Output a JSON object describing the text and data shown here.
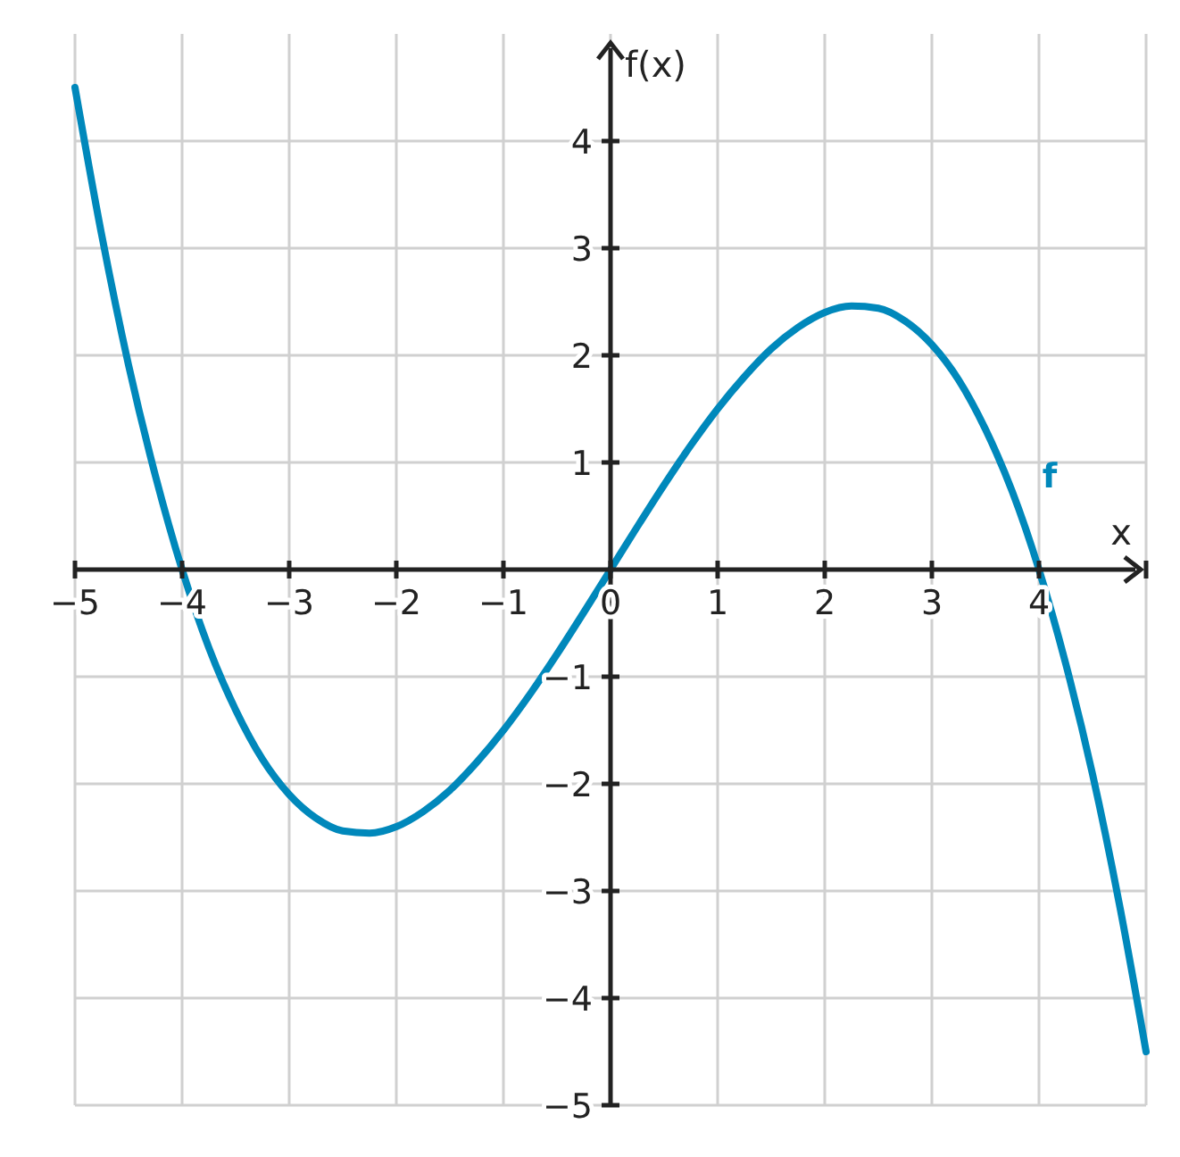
{
  "chart_data": {
    "type": "line",
    "xlabel": "x",
    "ylabel": "f(x)",
    "grid": true,
    "line_style": "solid",
    "marker": "none",
    "xlim": [
      -5,
      5
    ],
    "ylim": [
      -5,
      5
    ],
    "xticks": [
      {
        "value": -5,
        "label": "−5"
      },
      {
        "value": -4,
        "label": "−4"
      },
      {
        "value": -3,
        "label": "−3"
      },
      {
        "value": -2,
        "label": "−2"
      },
      {
        "value": -1,
        "label": "−1"
      },
      {
        "value": 0,
        "label": "0"
      },
      1,
      2,
      3,
      4,
      {
        "value": 5,
        "label": null
      }
    ],
    "yticks": [
      {
        "value": -5,
        "label": "−5"
      },
      {
        "value": -4,
        "label": "−4"
      },
      {
        "value": -3,
        "label": "−3"
      },
      {
        "value": -2,
        "label": "−2"
      },
      {
        "value": -1,
        "label": "−1"
      },
      1,
      2,
      3,
      4
    ],
    "series": [
      {
        "name": "f",
        "color": "#0088bb",
        "x": [
          -5,
          -4.75,
          -4.5,
          -4.25,
          -4,
          -3.75,
          -3.5,
          -3.25,
          -3,
          -2.75,
          -2.5,
          -2.25,
          -2,
          -1.75,
          -1.5,
          -1.25,
          -1,
          -0.75,
          -0.5,
          -0.25,
          0,
          0.25,
          0.5,
          0.75,
          1,
          1.25,
          1.5,
          1.75,
          2,
          2.25,
          2.5,
          2.75,
          3,
          3.25,
          3.5,
          3.75,
          4,
          4.25,
          4.5,
          4.75,
          5
        ],
        "values": [
          4.5,
          3.12,
          1.91,
          0.88,
          0,
          -0.73,
          -1.31,
          -1.77,
          -2.1,
          -2.32,
          -2.44,
          -2.46,
          -2.4,
          -2.26,
          -2.06,
          -1.8,
          -1.5,
          -1.16,
          -0.79,
          -0.4,
          0,
          0.4,
          0.79,
          1.16,
          1.5,
          1.8,
          2.06,
          2.26,
          2.4,
          2.46,
          2.44,
          2.32,
          2.1,
          1.77,
          1.31,
          0.73,
          0,
          -0.88,
          -1.91,
          -3.12,
          -4.5
        ]
      }
    ]
  }
}
